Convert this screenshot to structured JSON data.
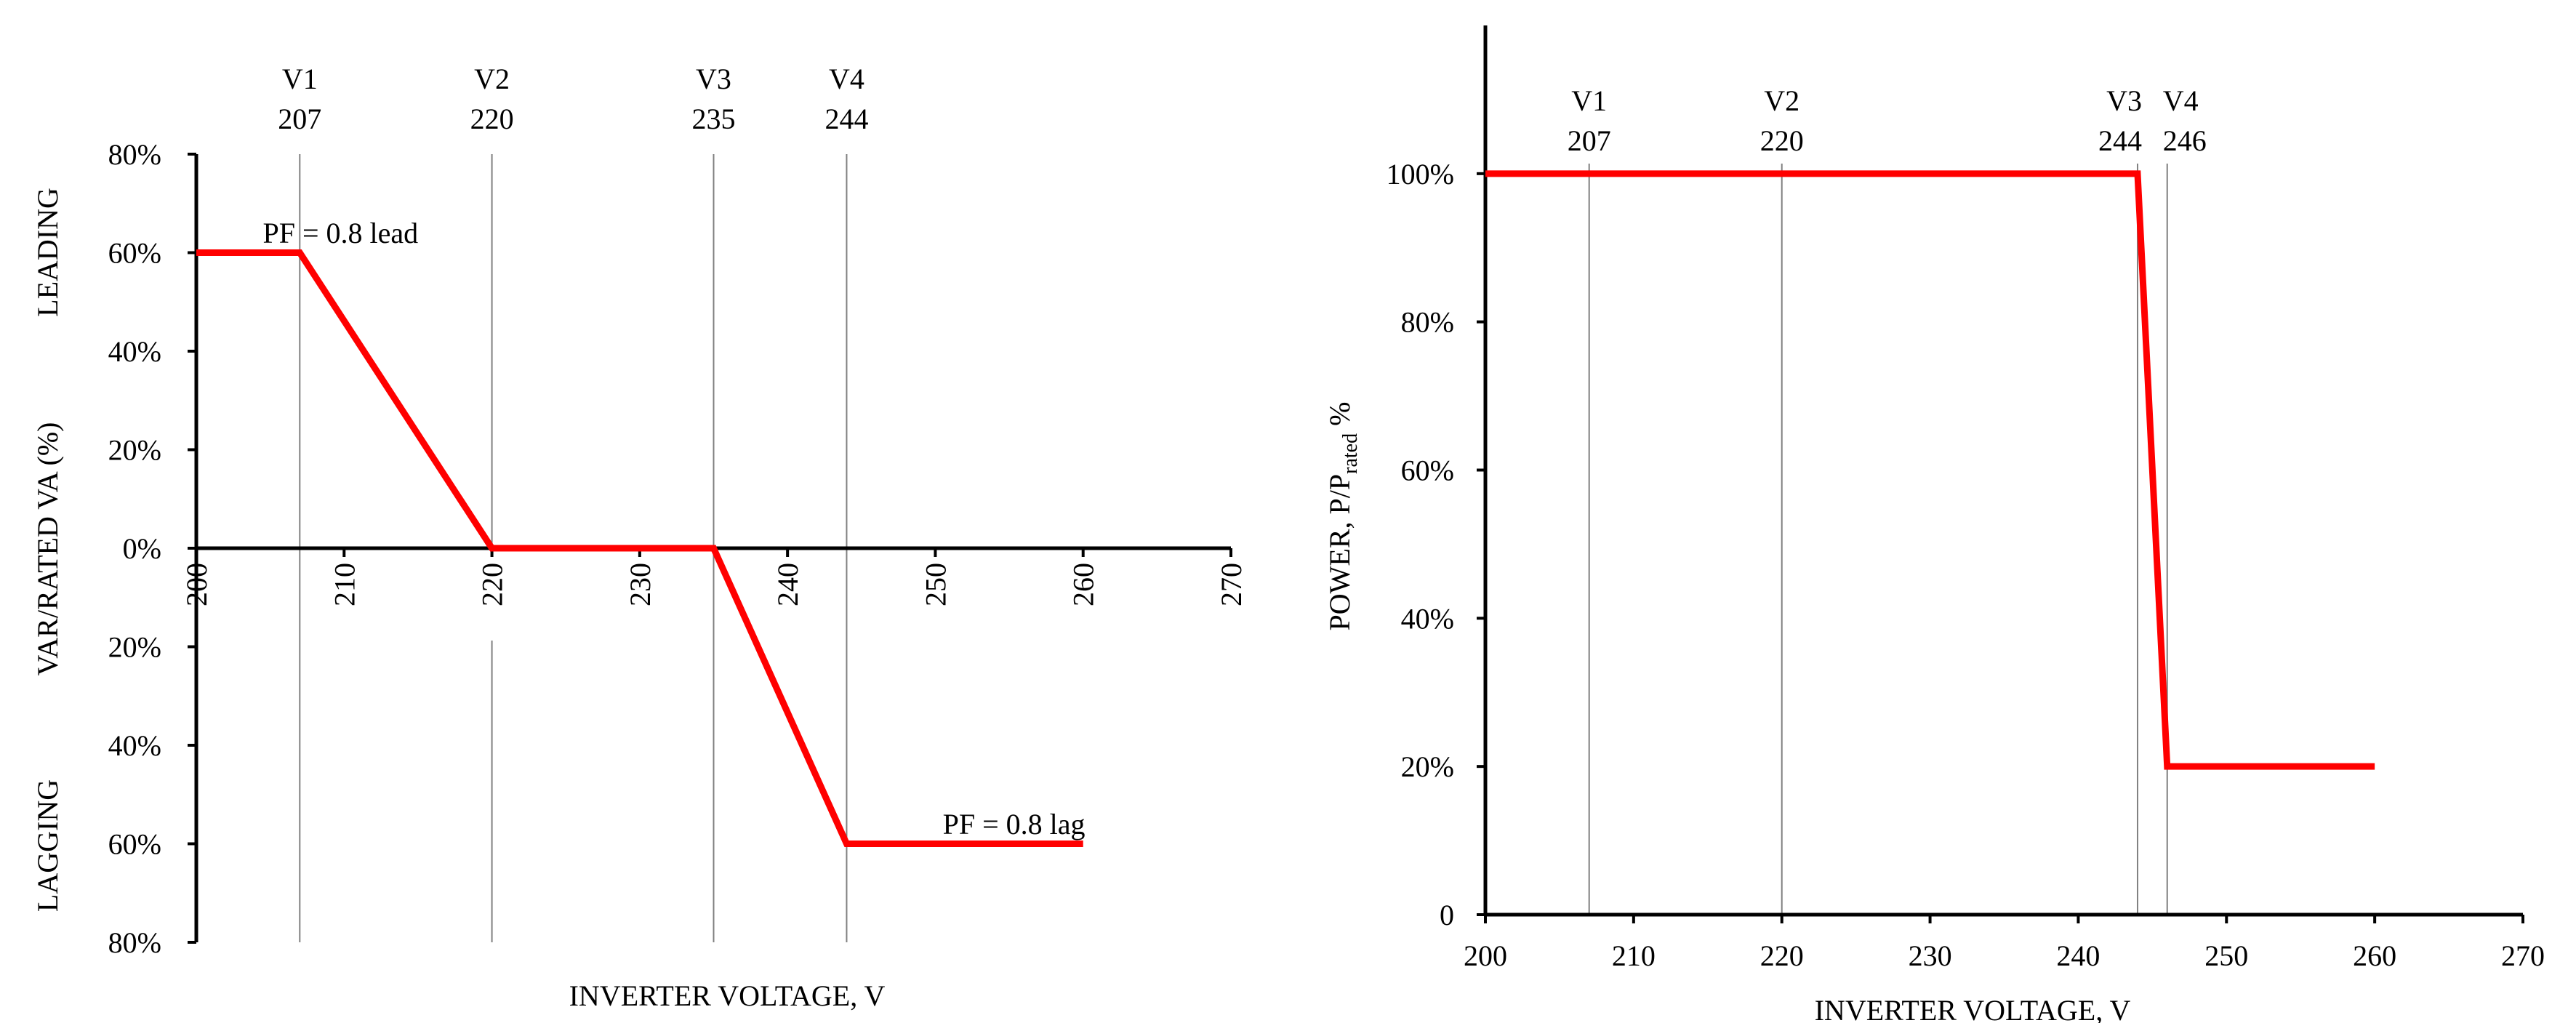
{
  "chart_data": [
    {
      "type": "line",
      "xlabel": "INVERTER VOLTAGE, V",
      "ylabel": "VAR/RATED VA (%)",
      "ylabel_top": "LEADING",
      "ylabel_bottom": "LAGGING",
      "xlim": [
        200,
        270
      ],
      "ylim": [
        -80,
        80
      ],
      "xticks": [
        {
          "value": 200,
          "label": "200"
        },
        {
          "value": 210,
          "label": "210"
        },
        {
          "value": 220,
          "label": "220"
        },
        {
          "value": 230,
          "label": "230"
        },
        {
          "value": 240,
          "label": "240"
        },
        {
          "value": 250,
          "label": "250"
        },
        {
          "value": 260,
          "label": "260"
        },
        {
          "value": 270,
          "label": "270"
        }
      ],
      "yticks": [
        {
          "value": 80,
          "label": "80%"
        },
        {
          "value": 60,
          "label": "60%"
        },
        {
          "value": 40,
          "label": "40%"
        },
        {
          "value": 20,
          "label": "20%"
        },
        {
          "value": 0,
          "label": "0%"
        },
        {
          "value": -20,
          "label": "20%"
        },
        {
          "value": -40,
          "label": "40%"
        },
        {
          "value": -60,
          "label": "60%"
        },
        {
          "value": -80,
          "label": "80%"
        }
      ],
      "voltage_markers": [
        {
          "name": "V1",
          "value": 207,
          "label": "207"
        },
        {
          "name": "V2",
          "value": 220,
          "label": "220"
        },
        {
          "name": "V3",
          "value": 235,
          "label": "235"
        },
        {
          "name": "V4",
          "value": 244,
          "label": "244"
        }
      ],
      "series": [
        {
          "color": "#ff0000",
          "x": [
            200,
            207,
            220,
            235,
            244,
            260
          ],
          "y": [
            60,
            60,
            0,
            0,
            -60,
            -60
          ]
        }
      ],
      "annotations": [
        {
          "text": "PF = 0.8 lead",
          "x": 204.5,
          "y": 62
        },
        {
          "text": "PF = 0.8 lag",
          "x": 250.5,
          "y": -58
        }
      ],
      "grid": false
    },
    {
      "type": "line",
      "xlabel": "INVERTER VOLTAGE, V",
      "ylabel_main": "POWER, P/P",
      "ylabel_sub": "rated",
      "ylabel_tail": " %",
      "xlim": [
        200,
        270
      ],
      "ylim": [
        0,
        120
      ],
      "xticks": [
        {
          "value": 200,
          "label": "200"
        },
        {
          "value": 210,
          "label": "210"
        },
        {
          "value": 220,
          "label": "220"
        },
        {
          "value": 230,
          "label": "230"
        },
        {
          "value": 240,
          "label": "240"
        },
        {
          "value": 250,
          "label": "250"
        },
        {
          "value": 260,
          "label": "260"
        },
        {
          "value": 270,
          "label": "270"
        }
      ],
      "yticks": [
        {
          "value": 0,
          "label": "0"
        },
        {
          "value": 20,
          "label": "20%"
        },
        {
          "value": 40,
          "label": "40%"
        },
        {
          "value": 60,
          "label": "60%"
        },
        {
          "value": 80,
          "label": "80%"
        },
        {
          "value": 100,
          "label": "100%"
        }
      ],
      "voltage_markers": [
        {
          "name": "V1",
          "value": 207,
          "label": "207"
        },
        {
          "name": "V2",
          "value": 220,
          "label": "220"
        },
        {
          "name": "V3",
          "value": 244,
          "label": "244"
        },
        {
          "name": "V4",
          "value": 246,
          "label": "246"
        }
      ],
      "series": [
        {
          "color": "#ff0000",
          "x": [
            200,
            244,
            246,
            260
          ],
          "y": [
            100,
            100,
            20,
            20
          ]
        }
      ],
      "grid": false
    }
  ]
}
